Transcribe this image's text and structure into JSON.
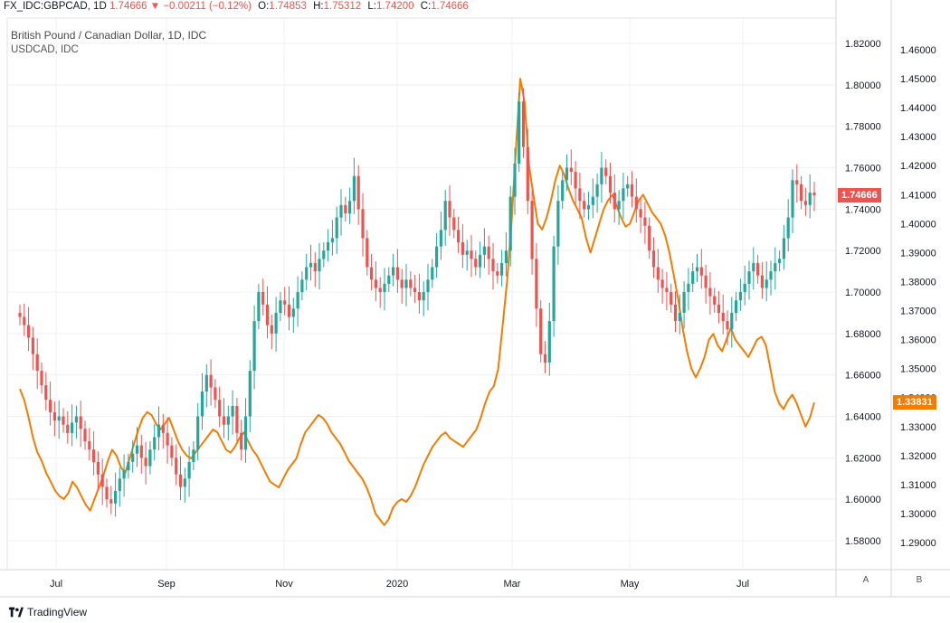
{
  "header": {
    "symbol": "FX_IDC:GBPCAD, 1D",
    "last": "1.74666",
    "change": "−0.00211 (−0.12%)",
    "o_label": "O:",
    "o_value": "1.74853",
    "h_label": "H:",
    "h_value": "1.75312",
    "l_label": "L:",
    "l_value": "1.74200",
    "c_label": "C:",
    "c_value": "1.74666"
  },
  "legend": {
    "main": "British Pound / Canadian Dollar, 1D, IDC",
    "overlay": "USDCAD, IDC"
  },
  "branding": {
    "name": "TradingView"
  },
  "scale_buttons": {
    "a": "A",
    "b": "B"
  },
  "chart_data": {
    "type": "candlestick",
    "colors": {
      "up": "#26a69a",
      "down": "#ef5350",
      "overlay": "#f57c00",
      "grid": "#eef0f3"
    },
    "x_ticks": [
      "Jul",
      "Sep",
      "Nov",
      "2020",
      "Mar",
      "May",
      "Jul"
    ],
    "left_axis": {
      "ticks": [
        "1.82000",
        "1.80000",
        "1.78000",
        "1.76000",
        "1.74000",
        "1.72000",
        "1.70000",
        "1.68000",
        "1.66000",
        "1.64000",
        "1.62000",
        "1.60000",
        "1.58000"
      ],
      "last_label": "1.74666"
    },
    "right_axis": {
      "ticks": [
        "1.46000",
        "1.45000",
        "1.44000",
        "1.43000",
        "1.42000",
        "1.41000",
        "1.40000",
        "1.39000",
        "1.38000",
        "1.37000",
        "1.36000",
        "1.35000",
        "1.34000",
        "1.33000",
        "1.32000",
        "1.31000",
        "1.30000",
        "1.29000"
      ],
      "last_label": "1.33831"
    },
    "series": [
      {
        "name": "GBPCAD",
        "type": "candlestick",
        "closes": [
          1.688,
          1.684,
          1.678,
          1.67,
          1.662,
          1.655,
          1.648,
          1.642,
          1.638,
          1.64,
          1.636,
          1.632,
          1.637,
          1.64,
          1.634,
          1.628,
          1.624,
          1.618,
          1.612,
          1.606,
          1.6,
          1.598,
          1.604,
          1.61,
          1.614,
          1.618,
          1.622,
          1.626,
          1.62,
          1.616,
          1.624,
          1.63,
          1.636,
          1.632,
          1.626,
          1.62,
          1.612,
          1.606,
          1.61,
          1.618,
          1.624,
          1.64,
          1.652,
          1.66,
          1.654,
          1.648,
          1.64,
          1.636,
          1.64,
          1.645,
          1.632,
          1.624,
          1.64,
          1.662,
          1.686,
          1.7,
          1.694,
          1.684,
          1.68,
          1.69,
          1.696,
          1.694,
          1.688,
          1.692,
          1.7,
          1.706,
          1.712,
          1.714,
          1.71,
          1.716,
          1.72,
          1.724,
          1.726,
          1.736,
          1.742,
          1.738,
          1.744,
          1.756,
          1.74,
          1.726,
          1.712,
          1.706,
          1.702,
          1.7,
          1.704,
          1.708,
          1.712,
          1.706,
          1.702,
          1.706,
          1.702,
          1.7,
          1.696,
          1.7,
          1.706,
          1.712,
          1.722,
          1.73,
          1.744,
          1.736,
          1.73,
          1.724,
          1.718,
          1.72,
          1.716,
          1.712,
          1.718,
          1.722,
          1.716,
          1.71,
          1.708,
          1.714,
          1.72,
          1.746,
          1.762,
          1.792,
          1.77,
          1.744,
          1.716,
          1.692,
          1.67,
          1.666,
          1.686,
          1.722,
          1.744,
          1.754,
          1.76,
          1.758,
          1.75,
          1.744,
          1.74,
          1.742,
          1.746,
          1.752,
          1.76,
          1.756,
          1.748,
          1.74,
          1.744,
          1.75,
          1.752,
          1.746,
          1.74,
          1.736,
          1.732,
          1.72,
          1.712,
          1.706,
          1.702,
          1.7,
          1.694,
          1.686,
          1.69,
          1.7,
          1.704,
          1.71,
          1.712,
          1.708,
          1.702,
          1.698,
          1.694,
          1.69,
          1.686,
          1.682,
          1.69,
          1.696,
          1.7,
          1.704,
          1.71,
          1.714,
          1.708,
          1.702,
          1.706,
          1.71,
          1.714,
          1.716,
          1.726,
          1.736,
          1.754,
          1.752,
          1.744,
          1.742,
          1.748,
          1.74666
        ]
      },
      {
        "name": "USDCAD",
        "type": "line",
        "values": [
          1.343,
          1.339,
          1.333,
          1.326,
          1.321,
          1.318,
          1.314,
          1.311,
          1.308,
          1.306,
          1.305,
          1.307,
          1.311,
          1.309,
          1.306,
          1.303,
          1.301,
          1.305,
          1.309,
          1.313,
          1.318,
          1.322,
          1.32,
          1.316,
          1.314,
          1.319,
          1.324,
          1.329,
          1.333,
          1.335,
          1.334,
          1.331,
          1.329,
          1.331,
          1.333,
          1.329,
          1.325,
          1.322,
          1.32,
          1.319,
          1.321,
          1.323,
          1.325,
          1.327,
          1.329,
          1.328,
          1.325,
          1.322,
          1.321,
          1.323,
          1.326,
          1.328,
          1.325,
          1.322,
          1.32,
          1.317,
          1.314,
          1.311,
          1.31,
          1.309,
          1.312,
          1.315,
          1.317,
          1.319,
          1.324,
          1.328,
          1.33,
          1.332,
          1.334,
          1.333,
          1.331,
          1.328,
          1.326,
          1.324,
          1.321,
          1.318,
          1.316,
          1.314,
          1.312,
          1.309,
          1.305,
          1.3,
          1.298,
          1.296,
          1.298,
          1.302,
          1.304,
          1.305,
          1.304,
          1.306,
          1.309,
          1.313,
          1.317,
          1.32,
          1.323,
          1.325,
          1.327,
          1.328,
          1.326,
          1.325,
          1.324,
          1.323,
          1.325,
          1.327,
          1.329,
          1.333,
          1.338,
          1.342,
          1.344,
          1.35,
          1.365,
          1.38,
          1.4,
          1.425,
          1.45,
          1.442,
          1.42,
          1.41,
          1.4,
          1.398,
          1.402,
          1.408,
          1.415,
          1.42,
          1.417,
          1.412,
          1.408,
          1.405,
          1.402,
          1.395,
          1.39,
          1.395,
          1.4,
          1.405,
          1.408,
          1.41,
          1.406,
          1.402,
          1.399,
          1.4,
          1.404,
          1.408,
          1.41,
          1.407,
          1.404,
          1.402,
          1.4,
          1.396,
          1.39,
          1.382,
          1.374,
          1.364,
          1.356,
          1.35,
          1.347,
          1.35,
          1.354,
          1.36,
          1.362,
          1.358,
          1.356,
          1.36,
          1.364,
          1.36,
          1.358,
          1.356,
          1.354,
          1.357,
          1.36,
          1.361,
          1.358,
          1.35,
          1.342,
          1.338,
          1.336,
          1.339,
          1.341,
          1.338,
          1.334,
          1.33,
          1.333,
          1.33831
        ]
      }
    ],
    "grid": true,
    "legend": "top-left"
  }
}
